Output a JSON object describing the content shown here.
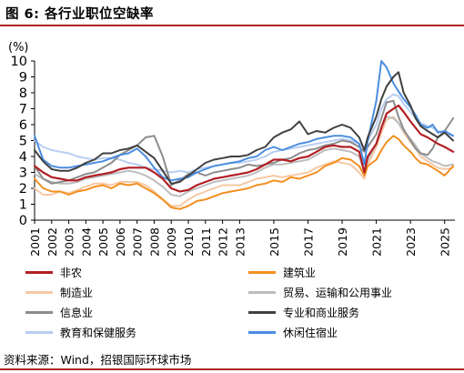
{
  "figure": {
    "title": "图 6: 各行业职位空缺率",
    "source": "资料来源：Wind，招银国际环球市场"
  },
  "chart_data": {
    "type": "line",
    "ylabel": "(%)",
    "ylim": [
      0,
      10
    ],
    "yticks": [
      "0",
      "1",
      "2",
      "3",
      "4",
      "5",
      "6",
      "7",
      "8",
      "9",
      "10"
    ],
    "xlim": [
      2001,
      2025.6
    ],
    "xticks": [
      "2001",
      "2002",
      "2003",
      "2004",
      "2005",
      "2006",
      "2007",
      "2008",
      "2009",
      "2010",
      "2011",
      "2012",
      "2013",
      "2015",
      "2017",
      "2019",
      "2021",
      "2023",
      "2025"
    ],
    "xtick_values": [
      2001,
      2002,
      2003,
      2004,
      2005,
      2006,
      2007,
      2008,
      2009,
      2010,
      2011,
      2012,
      2013,
      2015,
      2017,
      2019,
      2021,
      2023,
      2025
    ],
    "grid": false,
    "legend_position": "bottom",
    "series": [
      {
        "name": "非农",
        "color": "#b21f24",
        "width": 2.2,
        "x": [
          2001,
          2001.5,
          2002,
          2002.5,
          2003,
          2003.5,
          2004,
          2004.5,
          2005,
          2005.5,
          2006,
          2006.5,
          2007,
          2007.5,
          2008,
          2008.5,
          2009,
          2009.5,
          2010,
          2010.5,
          2011,
          2011.5,
          2012,
          2012.5,
          2013,
          2013.5,
          2014,
          2014.5,
          2015,
          2015.5,
          2016,
          2016.5,
          2017,
          2017.5,
          2018,
          2018.5,
          2019,
          2019.5,
          2020,
          2020.3,
          2020.5,
          2021,
          2021.3,
          2021.6,
          2022,
          2022.3,
          2022.6,
          2023,
          2023.3,
          2023.6,
          2024,
          2024.3,
          2024.6,
          2025,
          2025.5
        ],
        "y": [
          3.4,
          3.0,
          2.7,
          2.6,
          2.5,
          2.5,
          2.7,
          2.8,
          2.9,
          3.0,
          3.2,
          3.3,
          3.3,
          3.3,
          3.0,
          2.6,
          2.0,
          1.8,
          1.9,
          2.2,
          2.4,
          2.6,
          2.7,
          2.8,
          2.9,
          3.0,
          3.2,
          3.5,
          3.8,
          3.8,
          3.7,
          3.9,
          4.0,
          4.3,
          4.6,
          4.7,
          4.6,
          4.6,
          4.3,
          3.0,
          4.0,
          4.8,
          5.8,
          6.7,
          7.0,
          7.2,
          6.8,
          6.2,
          5.8,
          5.4,
          5.2,
          5.0,
          4.8,
          4.6,
          4.3
        ]
      },
      {
        "name": "建筑业",
        "color": "#f28e1e",
        "width": 2.0,
        "x": [
          2001,
          2001.5,
          2002,
          2002.5,
          2003,
          2003.5,
          2004,
          2004.5,
          2005,
          2005.5,
          2006,
          2006.5,
          2007,
          2007.5,
          2008,
          2008.5,
          2009,
          2009.5,
          2010,
          2010.5,
          2011,
          2011.5,
          2012,
          2012.5,
          2013,
          2013.5,
          2014,
          2014.5,
          2015,
          2015.5,
          2016,
          2016.5,
          2017,
          2017.5,
          2018,
          2018.5,
          2019,
          2019.5,
          2020,
          2020.3,
          2020.5,
          2021,
          2021.3,
          2021.6,
          2022,
          2022.3,
          2022.6,
          2023,
          2023.3,
          2023.6,
          2024,
          2024.3,
          2024.6,
          2025,
          2025.5
        ],
        "y": [
          2.6,
          2.0,
          1.8,
          1.8,
          1.6,
          1.8,
          1.9,
          2.1,
          2.2,
          2.0,
          2.3,
          2.2,
          2.3,
          2.0,
          1.7,
          1.3,
          0.8,
          0.7,
          0.9,
          1.2,
          1.3,
          1.5,
          1.7,
          1.8,
          1.9,
          2.0,
          2.2,
          2.3,
          2.5,
          2.4,
          2.7,
          2.6,
          2.8,
          3.0,
          3.4,
          3.6,
          3.9,
          3.8,
          3.4,
          2.8,
          3.4,
          3.8,
          4.4,
          4.9,
          5.3,
          5.1,
          4.7,
          4.3,
          3.9,
          3.6,
          3.5,
          3.3,
          3.1,
          2.8,
          3.4
        ]
      },
      {
        "name": "制造业",
        "color": "#f6c8a4",
        "width": 2.0,
        "x": [
          2001,
          2001.5,
          2002,
          2002.5,
          2003,
          2003.5,
          2004,
          2004.5,
          2005,
          2005.5,
          2006,
          2006.5,
          2007,
          2007.5,
          2008,
          2008.5,
          2009,
          2009.5,
          2010,
          2010.5,
          2011,
          2011.5,
          2012,
          2012.5,
          2013,
          2013.5,
          2014,
          2014.5,
          2015,
          2015.5,
          2016,
          2016.5,
          2017,
          2017.5,
          2018,
          2018.5,
          2019,
          2019.5,
          2020,
          2020.3,
          2020.5,
          2021,
          2021.3,
          2021.6,
          2022,
          2022.3,
          2022.6,
          2023,
          2023.3,
          2023.6,
          2024,
          2024.3,
          2024.6,
          2025,
          2025.5
        ],
        "y": [
          2.0,
          1.6,
          1.6,
          1.8,
          1.7,
          1.9,
          2.1,
          2.3,
          2.3,
          2.2,
          2.4,
          2.4,
          2.4,
          2.2,
          1.8,
          1.3,
          0.9,
          0.9,
          1.3,
          1.6,
          1.8,
          2.0,
          2.2,
          2.2,
          2.2,
          2.4,
          2.6,
          2.7,
          2.8,
          2.7,
          2.8,
          2.9,
          3.0,
          3.3,
          3.5,
          3.7,
          3.6,
          3.5,
          3.0,
          2.6,
          3.5,
          4.6,
          5.5,
          6.3,
          6.5,
          6.1,
          5.5,
          4.9,
          4.5,
          4.0,
          3.7,
          3.5,
          3.3,
          3.2,
          3.3
        ]
      },
      {
        "name": "贸易、运输和公用事业",
        "color": "#bdbdbd",
        "width": 2.0,
        "x": [
          2001,
          2001.5,
          2002,
          2002.5,
          2003,
          2003.5,
          2004,
          2004.5,
          2005,
          2005.5,
          2006,
          2006.5,
          2007,
          2007.5,
          2008,
          2008.5,
          2009,
          2009.5,
          2010,
          2010.5,
          2011,
          2011.5,
          2012,
          2012.5,
          2013,
          2013.5,
          2014,
          2014.5,
          2015,
          2015.5,
          2016,
          2016.5,
          2017,
          2017.5,
          2018,
          2018.5,
          2019,
          2019.5,
          2020,
          2020.3,
          2020.5,
          2021,
          2021.3,
          2021.6,
          2022,
          2022.3,
          2022.6,
          2023,
          2023.3,
          2023.6,
          2024,
          2024.3,
          2024.6,
          2025,
          2025.5
        ],
        "y": [
          2.9,
          2.6,
          2.4,
          2.3,
          2.3,
          2.4,
          2.6,
          2.7,
          2.8,
          2.9,
          3.0,
          3.1,
          3.0,
          2.8,
          2.5,
          2.1,
          1.6,
          1.5,
          1.8,
          2.0,
          2.2,
          2.4,
          2.5,
          2.6,
          2.7,
          2.8,
          3.0,
          3.3,
          3.5,
          3.5,
          3.6,
          3.7,
          3.8,
          4.1,
          4.4,
          4.5,
          4.4,
          4.3,
          4.0,
          3.0,
          3.8,
          4.8,
          5.8,
          6.5,
          6.4,
          6.1,
          5.6,
          5.1,
          4.7,
          4.2,
          3.9,
          3.7,
          3.6,
          3.4,
          3.5
        ]
      },
      {
        "name": "信息业",
        "color": "#8c8c8c",
        "width": 2.0,
        "x": [
          2001,
          2001.5,
          2002,
          2002.5,
          2003,
          2003.5,
          2004,
          2004.5,
          2005,
          2005.5,
          2006,
          2006.5,
          2007,
          2007.5,
          2008,
          2008.5,
          2009,
          2009.5,
          2010,
          2010.5,
          2011,
          2011.5,
          2012,
          2012.5,
          2013,
          2013.5,
          2014,
          2014.5,
          2015,
          2015.5,
          2016,
          2016.5,
          2017,
          2017.5,
          2018,
          2018.5,
          2019,
          2019.5,
          2020,
          2020.3,
          2020.5,
          2021,
          2021.3,
          2021.6,
          2022,
          2022.3,
          2022.6,
          2023,
          2023.3,
          2023.6,
          2024,
          2024.3,
          2024.6,
          2025,
          2025.5
        ],
        "y": [
          3.4,
          2.6,
          2.3,
          2.4,
          2.5,
          2.7,
          2.9,
          3.0,
          3.3,
          3.6,
          4.1,
          4.4,
          4.7,
          5.2,
          5.3,
          4.0,
          2.2,
          2.5,
          2.9,
          3.0,
          2.8,
          3.0,
          3.1,
          3.2,
          3.3,
          3.5,
          3.4,
          3.5,
          3.6,
          3.8,
          3.9,
          4.2,
          4.4,
          4.5,
          4.7,
          4.8,
          5.0,
          4.9,
          4.6,
          4.3,
          4.6,
          5.4,
          6.4,
          7.4,
          7.5,
          6.5,
          5.7,
          5.0,
          4.5,
          4.2,
          4.1,
          4.5,
          5.2,
          5.6,
          6.4
        ]
      },
      {
        "name": "专业和商业服务",
        "color": "#404040",
        "width": 2.0,
        "x": [
          2001,
          2001.5,
          2002,
          2002.5,
          2003,
          2003.5,
          2004,
          2004.5,
          2005,
          2005.5,
          2006,
          2006.5,
          2007,
          2007.5,
          2008,
          2008.5,
          2009,
          2009.5,
          2010,
          2010.5,
          2011,
          2011.5,
          2012,
          2012.5,
          2013,
          2013.5,
          2014,
          2014.5,
          2015,
          2015.5,
          2016,
          2016.5,
          2017,
          2017.5,
          2018,
          2018.5,
          2019,
          2019.5,
          2020,
          2020.3,
          2020.5,
          2021,
          2021.3,
          2021.6,
          2022,
          2022.3,
          2022.6,
          2023,
          2023.3,
          2023.6,
          2024,
          2024.3,
          2024.6,
          2025,
          2025.5
        ],
        "y": [
          4.4,
          3.7,
          3.2,
          3.1,
          3.1,
          3.3,
          3.6,
          3.8,
          4.2,
          4.2,
          4.4,
          4.5,
          4.7,
          4.3,
          3.9,
          3.1,
          2.3,
          2.4,
          2.8,
          3.2,
          3.6,
          3.8,
          3.9,
          4.0,
          4.0,
          4.1,
          4.4,
          4.6,
          5.2,
          5.5,
          5.7,
          6.2,
          5.4,
          5.6,
          5.5,
          5.8,
          6.0,
          5.8,
          5.2,
          4.4,
          5.2,
          6.5,
          7.6,
          8.4,
          9.0,
          9.3,
          8.0,
          7.2,
          6.4,
          5.9,
          5.6,
          5.4,
          5.2,
          5.5,
          5.0
        ]
      },
      {
        "name": "教育和保健服务",
        "color": "#b8cdf0",
        "width": 2.0,
        "x": [
          2001,
          2001.5,
          2002,
          2002.5,
          2003,
          2003.5,
          2004,
          2004.5,
          2005,
          2005.5,
          2006,
          2006.5,
          2007,
          2007.5,
          2008,
          2008.5,
          2009,
          2009.5,
          2010,
          2010.5,
          2011,
          2011.5,
          2012,
          2012.5,
          2013,
          2013.5,
          2014,
          2014.5,
          2015,
          2015.5,
          2016,
          2016.5,
          2017,
          2017.5,
          2018,
          2018.5,
          2019,
          2019.5,
          2020,
          2020.3,
          2020.5,
          2021,
          2021.3,
          2021.6,
          2022,
          2022.3,
          2022.6,
          2023,
          2023.3,
          2023.6,
          2024,
          2024.3,
          2024.6,
          2025,
          2025.5
        ],
        "y": [
          5.0,
          4.6,
          4.4,
          4.3,
          4.2,
          4.0,
          3.9,
          3.8,
          3.9,
          3.9,
          3.8,
          3.6,
          3.5,
          3.3,
          3.2,
          3.1,
          3.0,
          3.1,
          3.0,
          3.2,
          3.3,
          3.4,
          3.5,
          3.6,
          3.6,
          3.7,
          3.8,
          4.0,
          4.3,
          4.4,
          4.5,
          4.6,
          4.7,
          4.8,
          4.9,
          5.0,
          5.1,
          5.0,
          4.8,
          4.5,
          5.0,
          6.0,
          7.0,
          7.6,
          7.9,
          7.8,
          7.3,
          6.8,
          6.4,
          6.1,
          5.9,
          5.8,
          5.6,
          5.5,
          5.3
        ]
      },
      {
        "name": "休闲住宿业",
        "color": "#4a8de0",
        "width": 2.0,
        "x": [
          2001,
          2001.5,
          2002,
          2002.5,
          2003,
          2003.5,
          2004,
          2004.5,
          2005,
          2005.5,
          2006,
          2006.5,
          2007,
          2007.5,
          2008,
          2008.5,
          2009,
          2009.5,
          2010,
          2010.5,
          2011,
          2011.5,
          2012,
          2012.5,
          2013,
          2013.5,
          2014,
          2014.5,
          2015,
          2015.5,
          2016,
          2016.5,
          2017,
          2017.5,
          2018,
          2018.5,
          2019,
          2019.5,
          2020,
          2020.3,
          2020.5,
          2021,
          2021.3,
          2021.6,
          2022,
          2022.3,
          2022.6,
          2023,
          2023.3,
          2023.6,
          2024,
          2024.3,
          2024.6,
          2025,
          2025.5
        ],
        "y": [
          5.3,
          3.8,
          3.4,
          3.3,
          3.3,
          3.4,
          3.5,
          3.6,
          3.7,
          3.9,
          4.1,
          4.2,
          4.5,
          4.0,
          3.3,
          2.7,
          2.5,
          2.6,
          2.7,
          3.0,
          3.2,
          3.4,
          3.5,
          3.6,
          3.7,
          3.9,
          4.0,
          4.4,
          4.6,
          4.4,
          4.6,
          4.8,
          4.9,
          5.1,
          5.2,
          5.3,
          5.3,
          5.2,
          4.8,
          3.5,
          5.0,
          7.5,
          10.0,
          9.6,
          8.6,
          8.1,
          7.6,
          7.1,
          6.6,
          6.0,
          5.8,
          6.0,
          5.5,
          5.6,
          5.3
        ]
      }
    ]
  }
}
